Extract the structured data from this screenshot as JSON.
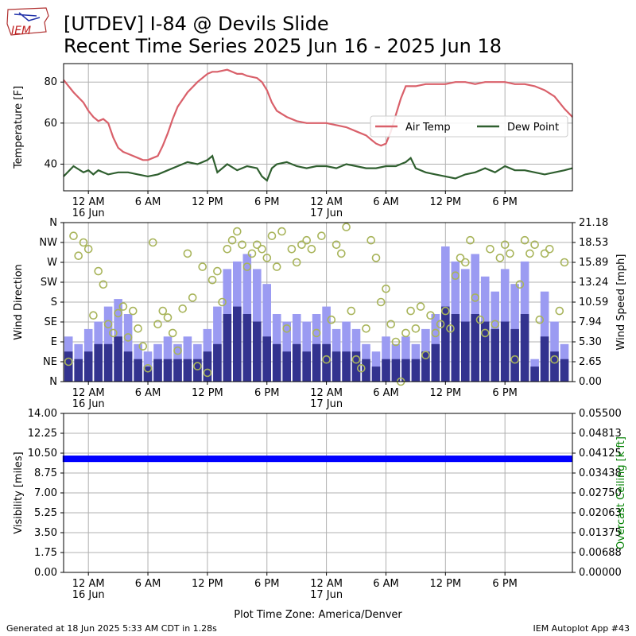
{
  "header": {
    "title_line1": "[UTDEV] I-84 @ Devils Slide",
    "title_line2": "Recent Time Series 2025 Jun 16 - 2025 Jun 18",
    "logo_text": "IEM"
  },
  "footer": {
    "generated": "Generated at 18 Jun 2025 5:33 AM CDT in 1.28s",
    "app": "IEM Autoplot App #43",
    "timezone_label": "Plot Time Zone: America/Denver"
  },
  "colors": {
    "air_temp": "#d9606a",
    "dew_point": "#2f5f2f",
    "gust_bar": "#9b9bf2",
    "speed_bar": "#33338f",
    "wind_dir": "#a8b45a",
    "visibility": "#0000ff",
    "ceiling_axis": "#008000",
    "grid": "#b0b0b0"
  },
  "chart_data": [
    {
      "type": "line",
      "ylabel": "Temperature [F]",
      "xlim": [
        -2.5,
        48.8
      ],
      "ylim": [
        27,
        89
      ],
      "yticks": [
        40,
        60,
        80
      ],
      "xticks": [
        0,
        6,
        12,
        18,
        24,
        30,
        36,
        42
      ],
      "xtick_labels": [
        "12 AM\n16 Jun",
        "6 AM",
        "12 PM",
        "6 PM",
        "12 AM\n17 Jun",
        "6 AM",
        "12 PM",
        "6 PM"
      ],
      "grid": true,
      "legend_position": "right",
      "series": [
        {
          "name": "Air Temp",
          "x": [
            -2.5,
            -1.5,
            -0.5,
            0,
            0.5,
            1,
            1.5,
            2,
            2.5,
            3,
            3.5,
            4,
            5,
            5.5,
            6,
            6.5,
            7,
            7.5,
            8,
            8.5,
            9,
            10,
            11,
            12,
            12.5,
            13,
            14,
            15,
            15.5,
            16,
            17,
            17.5,
            18,
            18.5,
            19,
            20,
            21,
            22,
            23,
            24,
            25,
            26,
            27,
            28,
            28.5,
            29,
            29.5,
            30,
            30.5,
            31,
            31.5,
            32,
            32.5,
            33,
            34,
            35,
            36,
            37,
            38,
            39,
            40,
            41,
            42,
            43,
            44,
            45,
            46,
            47,
            48,
            48.8
          ],
          "y": [
            81,
            75,
            70,
            66,
            63,
            61,
            62,
            60,
            53,
            48,
            46,
            45,
            43,
            42,
            42,
            43,
            44,
            49,
            55,
            62,
            68,
            75,
            80,
            84,
            85,
            85,
            86,
            84,
            84,
            83,
            82,
            80,
            76,
            70,
            66,
            63,
            61,
            60,
            60,
            60,
            59,
            58,
            56,
            54,
            52,
            50,
            49,
            50,
            56,
            64,
            72,
            78,
            78,
            78,
            79,
            79,
            79,
            80,
            80,
            79,
            80,
            80,
            80,
            79,
            79,
            78,
            76,
            73,
            67,
            63
          ]
        },
        {
          "name": "Dew Point",
          "x": [
            -2.5,
            -1.5,
            -0.5,
            0,
            0.5,
            1,
            2,
            3,
            4,
            5,
            6,
            7,
            8,
            9,
            10,
            11,
            12,
            12.5,
            13,
            14,
            15,
            16,
            17,
            17.5,
            18,
            18.5,
            19,
            20,
            21,
            22,
            23,
            24,
            25,
            26,
            27,
            28,
            29,
            30,
            31,
            32,
            32.5,
            33,
            34,
            35,
            36,
            37,
            38,
            39,
            40,
            41,
            42,
            43,
            44,
            45,
            46,
            47,
            48,
            48.8
          ],
          "y": [
            34,
            39,
            36,
            37,
            35,
            37,
            35,
            36,
            36,
            35,
            34,
            35,
            37,
            39,
            41,
            40,
            42,
            44,
            36,
            40,
            37,
            39,
            38,
            34,
            32,
            38,
            40,
            41,
            39,
            38,
            39,
            39,
            38,
            40,
            39,
            38,
            38,
            39,
            39,
            41,
            43,
            38,
            36,
            35,
            34,
            33,
            35,
            36,
            38,
            36,
            39,
            37,
            37,
            36,
            35,
            36,
            37,
            38
          ]
        }
      ]
    },
    {
      "type": "bar",
      "ylabel": "Wind Direction",
      "ylabel_right": "Wind Speed [mph]",
      "xlim": [
        -2.5,
        48.8
      ],
      "ylim": [
        0,
        360
      ],
      "ylim_right": [
        0,
        21.18
      ],
      "yticks": [
        "N",
        "NE",
        "E",
        "SE",
        "S",
        "SW",
        "W",
        "NW",
        "N"
      ],
      "yticks_right": [
        "0.00",
        "2.65",
        "5.30",
        "7.94",
        "10.59",
        "13.24",
        "15.89",
        "18.53",
        "21.18"
      ],
      "xticks": [
        0,
        6,
        12,
        18,
        24,
        30,
        36,
        42
      ],
      "xtick_labels": [
        "12 AM\n16 Jun",
        "6 AM",
        "12 PM",
        "6 PM",
        "12 AM\n17 Jun",
        "6 AM",
        "12 PM",
        "6 PM"
      ],
      "grid": true,
      "series": [
        {
          "name": "Gust",
          "x": [
            -2,
            -1,
            0,
            1,
            2,
            3,
            4,
            5,
            6,
            7,
            8,
            9,
            10,
            11,
            12,
            13,
            14,
            15,
            16,
            17,
            18,
            19,
            20,
            21,
            22,
            23,
            24,
            25,
            26,
            27,
            28,
            29,
            30,
            31,
            32,
            33,
            34,
            35,
            36,
            37,
            38,
            39,
            40,
            41,
            42,
            43,
            44,
            45,
            46,
            47,
            48
          ],
          "values": [
            6,
            5,
            7,
            8,
            10,
            11,
            9,
            5,
            4,
            5,
            6,
            5,
            6,
            5,
            7,
            10,
            15,
            16,
            17,
            15,
            13,
            9,
            8,
            9,
            8,
            9,
            10,
            7,
            8,
            7,
            5,
            4,
            6,
            5,
            6,
            5,
            7,
            9,
            18,
            16,
            15,
            17,
            14,
            12,
            15,
            13,
            16,
            3,
            12,
            8,
            5
          ]
        },
        {
          "name": "Speed",
          "x": [
            -2,
            -1,
            0,
            1,
            2,
            3,
            4,
            5,
            6,
            7,
            8,
            9,
            10,
            11,
            12,
            13,
            14,
            15,
            16,
            17,
            18,
            19,
            20,
            21,
            22,
            23,
            24,
            25,
            26,
            27,
            28,
            29,
            30,
            31,
            32,
            33,
            34,
            35,
            36,
            37,
            38,
            39,
            40,
            41,
            42,
            43,
            44,
            45,
            46,
            47,
            48
          ],
          "values": [
            4,
            3,
            4,
            5,
            5,
            6,
            4,
            3,
            2,
            3,
            3,
            3,
            3,
            3,
            4,
            5,
            9,
            10,
            9,
            8,
            6,
            5,
            4,
            5,
            4,
            5,
            5,
            4,
            4,
            4,
            3,
            2,
            3,
            3,
            3,
            3,
            4,
            5,
            10,
            9,
            8,
            9,
            8,
            7,
            8,
            7,
            9,
            2,
            6,
            4,
            3
          ]
        },
        {
          "name": "Wind Direction",
          "type": "scatter",
          "x": [
            -2,
            -1.5,
            -1,
            -0.5,
            0,
            0.5,
            1,
            1.5,
            2,
            2.5,
            3,
            3.5,
            4,
            4.5,
            5,
            5.5,
            6,
            6.5,
            7,
            7.5,
            8,
            8.5,
            9,
            9.5,
            10,
            10.5,
            11,
            11.5,
            12,
            12.5,
            13,
            13.5,
            14,
            14.5,
            15,
            15.5,
            16,
            16.5,
            17,
            17.5,
            18,
            18.5,
            19,
            19.5,
            20,
            20.5,
            21,
            21.5,
            22,
            22.5,
            23,
            23.5,
            24,
            24.5,
            25,
            25.5,
            26,
            26.5,
            27,
            27.5,
            28,
            28.5,
            29,
            29.5,
            30,
            30.5,
            31,
            31.5,
            32,
            32.5,
            33,
            33.5,
            34,
            34.5,
            35,
            35.5,
            36,
            36.5,
            37,
            37.5,
            38,
            38.5,
            39,
            39.5,
            40,
            40.5,
            41,
            41.5,
            42,
            42.5,
            43,
            43.5,
            44,
            44.5,
            45,
            45.5,
            46,
            46.5,
            47,
            47.5,
            48
          ],
          "values": [
            45,
            330,
            285,
            315,
            300,
            150,
            250,
            220,
            130,
            110,
            155,
            170,
            100,
            160,
            120,
            80,
            30,
            315,
            130,
            160,
            145,
            110,
            70,
            165,
            290,
            190,
            35,
            260,
            20,
            230,
            250,
            180,
            300,
            320,
            340,
            310,
            260,
            290,
            310,
            300,
            280,
            330,
            260,
            340,
            120,
            300,
            270,
            310,
            320,
            300,
            110,
            330,
            50,
            140,
            310,
            290,
            350,
            160,
            50,
            30,
            120,
            320,
            280,
            180,
            210,
            130,
            90,
            0,
            110,
            160,
            120,
            170,
            60,
            150,
            110,
            130,
            160,
            120,
            240,
            280,
            270,
            320,
            190,
            140,
            110,
            300,
            130,
            280,
            310,
            290,
            50,
            220,
            320,
            290,
            310,
            140,
            290,
            300,
            50,
            160,
            270
          ]
        }
      ]
    },
    {
      "type": "scatter",
      "ylabel": "Visibility [miles]",
      "ylabel_right": "Overcast Ceiling [k ft]",
      "xlim": [
        -2.5,
        48.8
      ],
      "ylim": [
        0,
        14
      ],
      "ylim_right": [
        0,
        0.055
      ],
      "yticks": [
        "0.00",
        "1.75",
        "3.50",
        "5.25",
        "7.00",
        "8.75",
        "10.50",
        "12.25",
        "14.00"
      ],
      "yticks_right": [
        "0.00000",
        "0.00688",
        "0.01375",
        "0.02063",
        "0.02750",
        "0.03438",
        "0.04125",
        "0.04813",
        "0.05500"
      ],
      "xticks": [
        0,
        6,
        12,
        18,
        24,
        30,
        36,
        42
      ],
      "xtick_labels": [
        "12 AM\n16 Jun",
        "6 AM",
        "12 PM",
        "6 PM",
        "12 AM\n17 Jun",
        "6 AM",
        "12 PM",
        "6 PM"
      ],
      "xlabel": "Plot Time Zone: America/Denver",
      "grid": true,
      "series": [
        {
          "name": "Visibility",
          "x_start": -2.5,
          "x_end": 48.8,
          "value": 10.0
        }
      ]
    }
  ]
}
